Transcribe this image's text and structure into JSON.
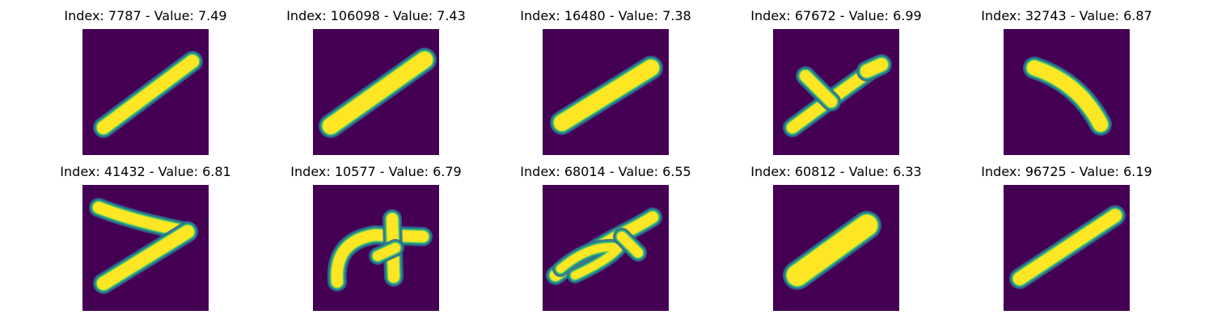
{
  "colormap": {
    "background": "#440154",
    "edge_dark": "#31688e",
    "edge_mid": "#21918c",
    "edge_light": "#5ec962",
    "core": "#fde725"
  },
  "panels": [
    {
      "title": "Index: 7787 - Value: 7.49",
      "index": 7787,
      "value": 7.49,
      "glyph": "diag-stroke"
    },
    {
      "title": "Index: 106098 - Value: 7.43",
      "index": 106098,
      "value": 7.43,
      "glyph": "diag-stroke-thick"
    },
    {
      "title": "Index: 16480 - Value: 7.38",
      "index": 16480,
      "value": 7.38,
      "glyph": "diag-stroke-short"
    },
    {
      "title": "Index: 67672 - Value: 6.99",
      "index": 67672,
      "value": 6.99,
      "glyph": "diag-stroke-branch"
    },
    {
      "title": "Index: 32743 - Value: 6.87",
      "index": 32743,
      "value": 6.87,
      "glyph": "curved-down-stroke"
    },
    {
      "title": "Index: 41432 - Value: 6.81",
      "index": 41432,
      "value": 6.81,
      "glyph": "seven-shape"
    },
    {
      "title": "Index: 10577 - Value: 6.79",
      "index": 10577,
      "value": 6.79,
      "glyph": "arch-cross"
    },
    {
      "title": "Index: 68014 - Value: 6.55",
      "index": 68014,
      "value": 6.55,
      "glyph": "loop-stroke"
    },
    {
      "title": "Index: 60812 - Value: 6.33",
      "index": 60812,
      "value": 6.33,
      "glyph": "thick-blob-stroke"
    },
    {
      "title": "Index: 96725 - Value: 6.19",
      "index": 96725,
      "value": 6.19,
      "glyph": "diag-stroke-long"
    }
  ]
}
